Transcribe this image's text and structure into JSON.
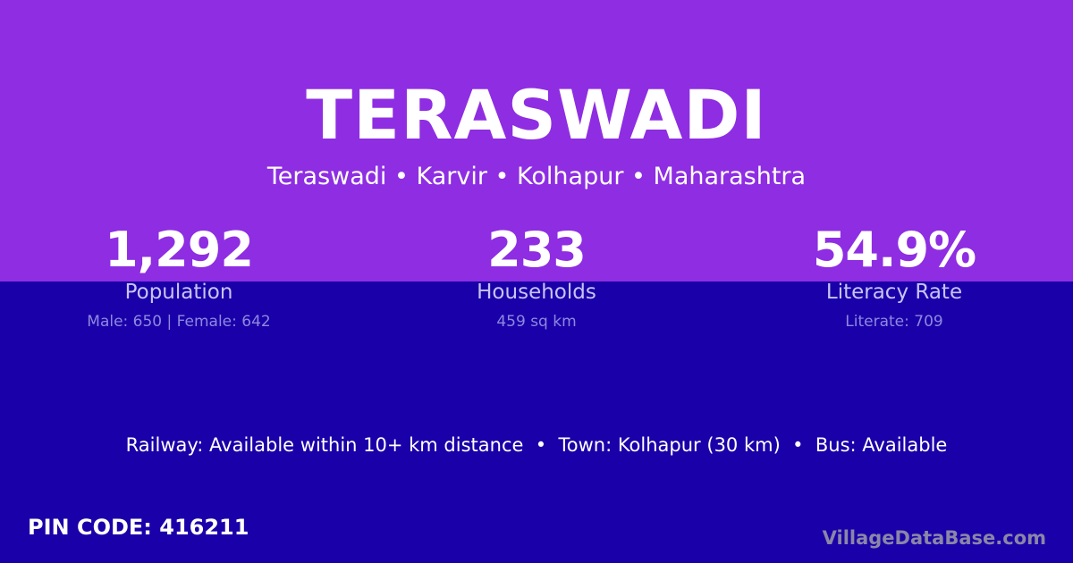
{
  "title": "TERASWADI",
  "subtitle": "Teraswadi • Karvir • Kolhapur • Maharashtra",
  "stats": [
    {
      "value": "1,292",
      "label": "Population",
      "sub": "Male: 650 | Female: 642"
    },
    {
      "value": "233",
      "label": "Households",
      "sub": "459 sq km"
    },
    {
      "value": "54.9%",
      "label": "Literacy Rate",
      "sub": "Literate: 709"
    }
  ],
  "facts": "Railway: Available within 10+ km distance  •  Town: Kolhapur (30 km)  •  Bus: Available",
  "pin": "PIN CODE: 416211",
  "brand": "VillageDataBase.com",
  "colors": {
    "top": "#8e2de2",
    "bottom": "#1a00a8"
  }
}
